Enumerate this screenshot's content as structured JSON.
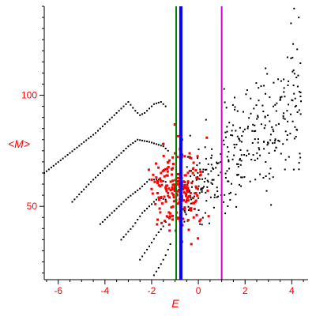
{
  "chart_data": {
    "type": "scatter",
    "title": "",
    "xlabel": "E",
    "ylabel": "<M>",
    "xlim": [
      -6.6,
      4.7
    ],
    "ylim": [
      17,
      140
    ],
    "x_ticks": [
      {
        "value": -6,
        "label": "-6"
      },
      {
        "value": -4,
        "label": "-4"
      },
      {
        "value": -2,
        "label": "-2"
      },
      {
        "value": 0,
        "label": "0"
      },
      {
        "value": 2,
        "label": "2"
      },
      {
        "value": 4,
        "label": "4"
      }
    ],
    "y_ticks": [
      {
        "value": 50,
        "label": "50"
      },
      {
        "value": 100,
        "label": "100"
      }
    ],
    "vertical_lines": [
      {
        "x": -0.95,
        "color": "#008000"
      },
      {
        "x": -0.75,
        "color": "#0000ff"
      },
      {
        "x": 1.0,
        "color": "#cc00cc"
      }
    ],
    "series": [
      {
        "color": "#000000",
        "marker": "dot",
        "curves": [
          {
            "x": [
              -6.6,
              -5.5,
              -4.4,
              -3.4,
              -3.0,
              -2.7,
              -2.5,
              -2.3,
              -2.1,
              -1.9,
              -1.6,
              -1.4
            ],
            "y": [
              65,
              74,
              83,
              93,
              97,
              93,
              91,
              92,
              94,
              96,
              97,
              95
            ]
          },
          {
            "x": [
              -5.4,
              -4.6,
              -3.7,
              -3.0,
              -2.6,
              -2.1,
              -1.5,
              -1.3
            ],
            "y": [
              52,
              61,
              70,
              77,
              80,
              79,
              77,
              75
            ]
          },
          {
            "x": [
              -4.2,
              -3.6,
              -3.0,
              -2.5,
              -2.1,
              -1.7,
              -1.4
            ],
            "y": [
              42,
              48,
              54,
              58,
              62,
              62,
              61
            ]
          },
          {
            "x": [
              -3.3,
              -2.8,
              -2.4,
              -2.0,
              -1.7,
              -1.4
            ],
            "y": [
              35,
              41,
              47,
              51,
              54,
              53
            ]
          },
          {
            "x": [
              -2.5,
              -2.1,
              -1.8,
              -1.5,
              -1.3
            ],
            "y": [
              26,
              32,
              37,
              41,
              45
            ]
          },
          {
            "x": [
              -1.9,
              -1.6,
              -1.4,
              -1.2
            ],
            "y": [
              19,
              24,
              28,
              33
            ]
          }
        ]
      },
      {
        "color": "#000000",
        "marker": "dot",
        "scatter": {
          "seed": 7,
          "count": 330,
          "x_range": [
            -0.6,
            4.4
          ],
          "y_center_at_xmin": 55,
          "y_slope": 8.5,
          "y_spread": 14,
          "outliers": [
            [
              4.1,
              139
            ],
            [
              4.3,
              135
            ],
            [
              4.2,
              108
            ],
            [
              0.6,
              60
            ],
            [
              0.3,
              47
            ],
            [
              1.6,
              84
            ]
          ]
        }
      },
      {
        "color": "#ff0000",
        "marker": "square",
        "scatter": {
          "seed": 13,
          "count": 210,
          "x_center": -0.85,
          "x_spread": 0.55,
          "y_center": 57,
          "y_spread": 9,
          "extra": [
            [
              -1.6,
              65
            ],
            [
              -1.8,
              63
            ],
            [
              -2.0,
              62
            ],
            [
              -0.2,
              45
            ],
            [
              0.1,
              44
            ],
            [
              -0.3,
              33
            ],
            [
              -0.7,
              80
            ],
            [
              -1.5,
              78
            ],
            [
              -1.1,
              72
            ],
            [
              0.4,
              57
            ]
          ]
        }
      }
    ],
    "grid": false,
    "legend": "none"
  }
}
